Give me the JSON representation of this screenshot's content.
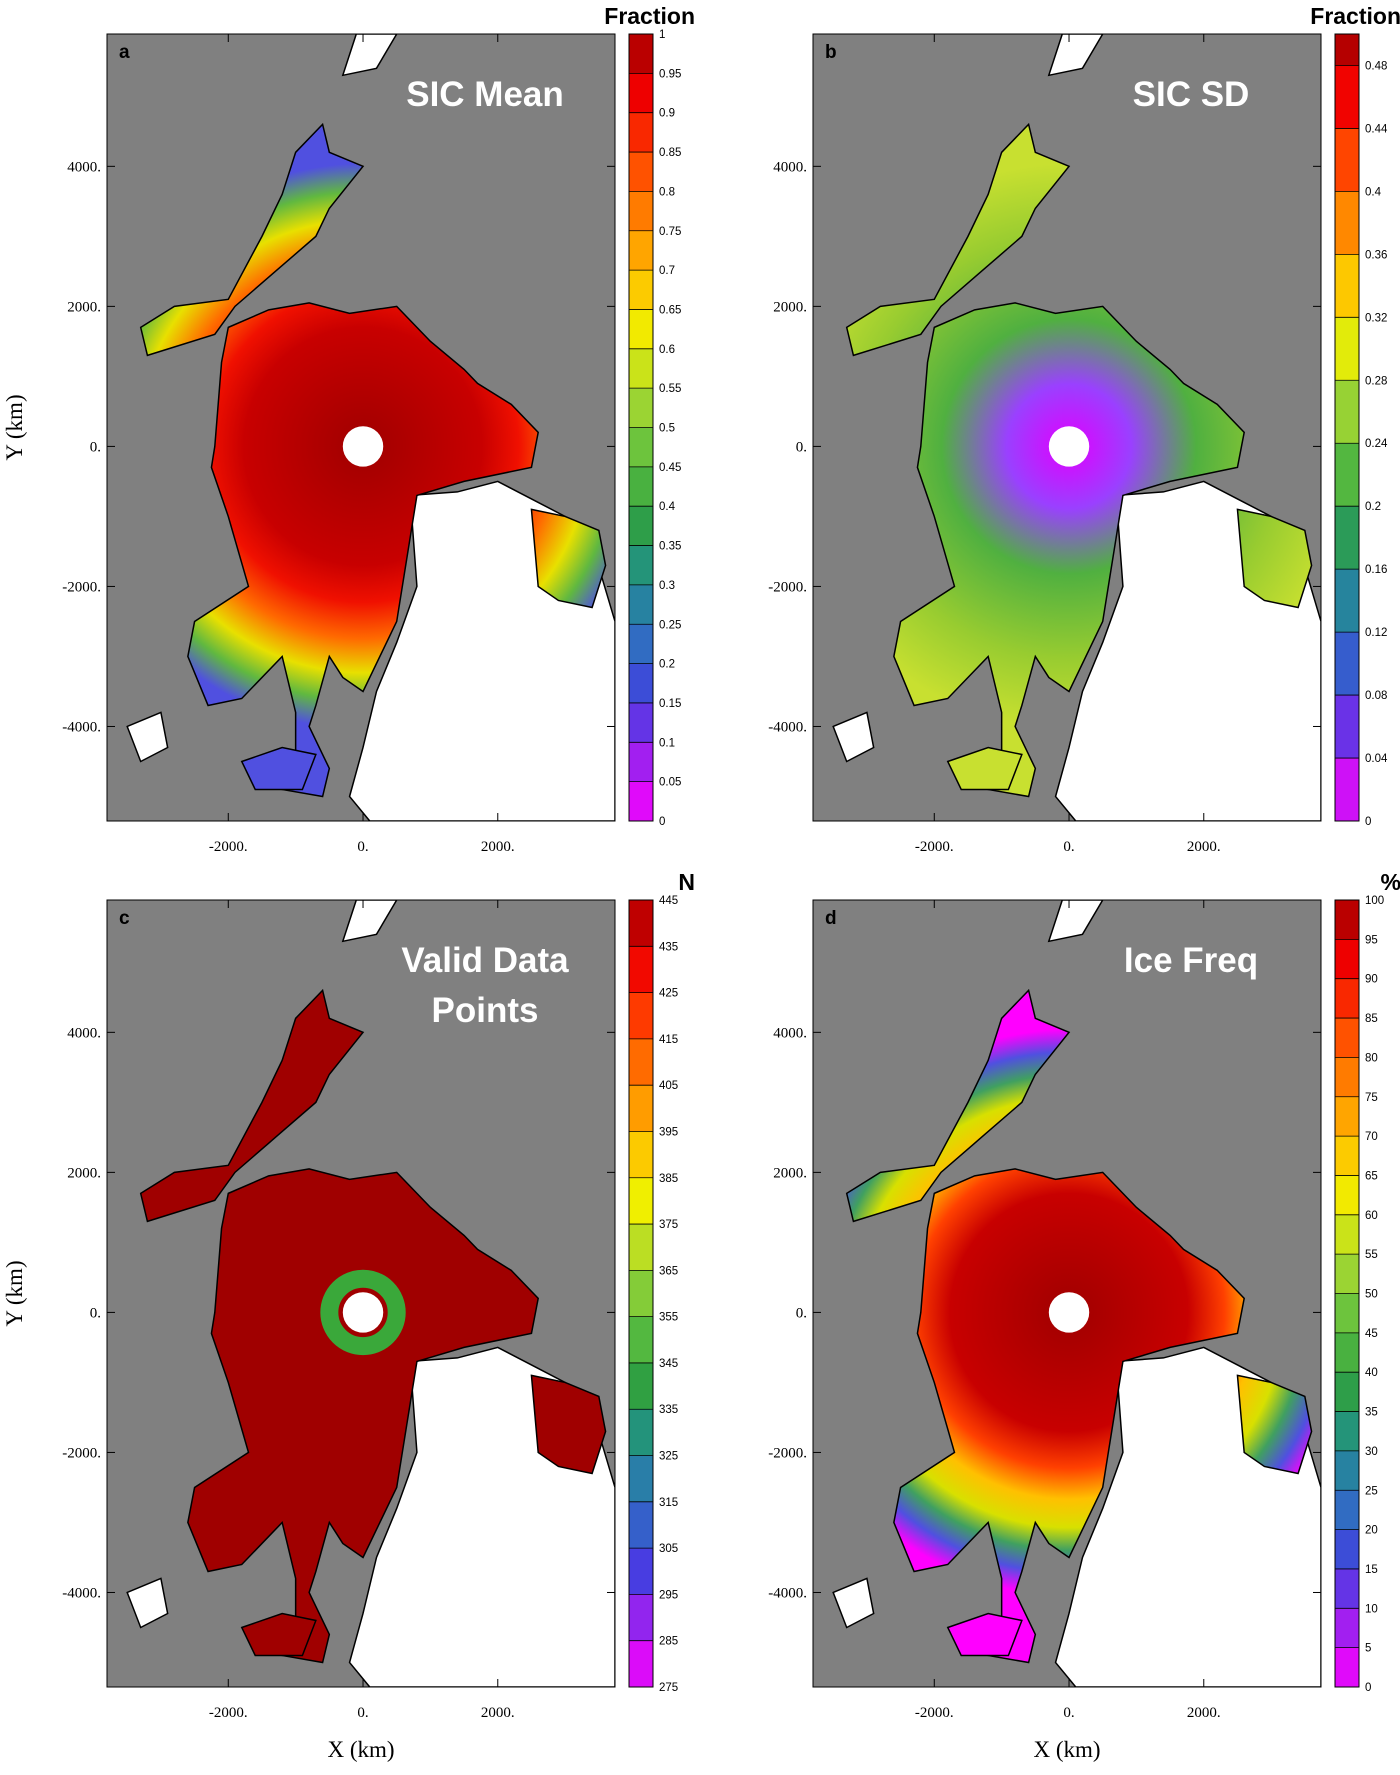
{
  "axes": {
    "x_label": "X (km)",
    "y_label": "Y (km)",
    "xlim": [
      -3800,
      3740
    ],
    "ylim": [
      -5350,
      5890
    ],
    "xticks": [
      {
        "value": -2000,
        "label": "-2000."
      },
      {
        "value": 0,
        "label": "0."
      },
      {
        "value": 2000,
        "label": "2000."
      }
    ],
    "yticks": [
      {
        "value": 4000,
        "label": "4000."
      },
      {
        "value": 2000,
        "label": "2000."
      },
      {
        "value": 0,
        "label": "0."
      },
      {
        "value": -2000,
        "label": "-2000."
      },
      {
        "value": -4000,
        "label": "-4000."
      }
    ]
  },
  "panels": [
    {
      "letter": "a",
      "title_lines": [
        "SIC Mean"
      ],
      "unit": "Fraction",
      "colorbar_lim": [
        0,
        1
      ],
      "colorbar_ticks": [
        0,
        0.05,
        0.1,
        0.15,
        0.2,
        0.25,
        0.3,
        0.35,
        0.4,
        0.45,
        0.5,
        0.55,
        0.6,
        0.65,
        0.7,
        0.75,
        0.8,
        0.85,
        0.9,
        0.95,
        1
      ]
    },
    {
      "letter": "b",
      "title_lines": [
        "SIC SD"
      ],
      "unit": "Fraction",
      "colorbar_lim": [
        0,
        0.5
      ],
      "colorbar_ticks": [
        0,
        0.04,
        0.08,
        0.12,
        0.16,
        0.2,
        0.24,
        0.28,
        0.32,
        0.36,
        0.4,
        0.44,
        0.48
      ]
    },
    {
      "letter": "c",
      "title_lines": [
        "Valid Data",
        "Points"
      ],
      "unit": "N",
      "colorbar_lim": [
        275,
        445
      ],
      "colorbar_ticks": [
        275,
        285,
        295,
        305,
        315,
        325,
        335,
        345,
        355,
        365,
        375,
        385,
        395,
        405,
        415,
        425,
        435,
        445
      ]
    },
    {
      "letter": "d",
      "title_lines": [
        "Ice Freq"
      ],
      "unit": "%",
      "colorbar_lim": [
        0,
        100
      ],
      "colorbar_ticks": [
        0,
        5,
        10,
        15,
        20,
        25,
        30,
        35,
        40,
        45,
        50,
        55,
        60,
        65,
        70,
        75,
        80,
        85,
        90,
        95,
        100
      ]
    }
  ]
}
